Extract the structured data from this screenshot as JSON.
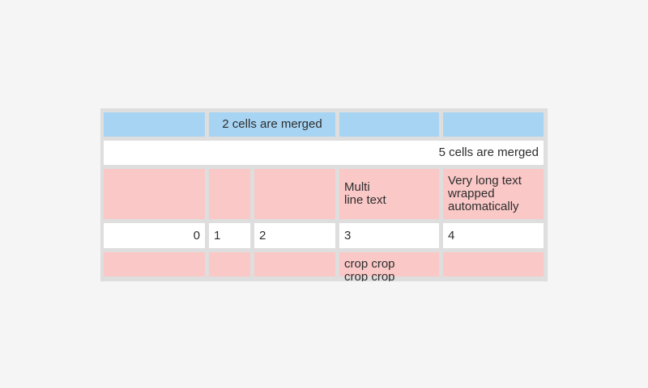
{
  "colors": {
    "page_bg": "#f5f5f5",
    "table_bg": "#dedede",
    "blue": "#a8d4f3",
    "pink": "#fac8c7",
    "white": "#ffffff",
    "text": "#2d2d2d"
  },
  "table": {
    "row1": {
      "merged_label": "2 cells are merged"
    },
    "row2": {
      "merged_label": "5 cells are merged"
    },
    "row3": {
      "multiline_text": "Multi\nline text",
      "wrapped_text": "Very long text wrapped automatically"
    },
    "row4": {
      "values": [
        "0",
        "1",
        "2",
        "3",
        "4"
      ]
    },
    "row5": {
      "crop_text": "crop crop crop crop"
    }
  }
}
